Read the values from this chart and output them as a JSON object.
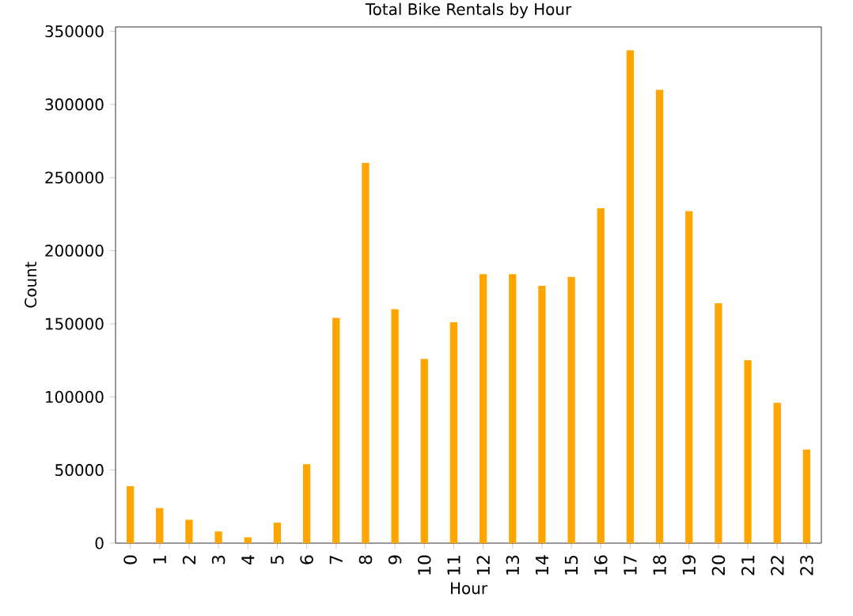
{
  "chart_data": {
    "type": "bar",
    "title": "Total Bike Rentals by Hour",
    "xlabel": "Hour",
    "ylabel": "Count",
    "categories": [
      "0",
      "1",
      "2",
      "3",
      "4",
      "5",
      "6",
      "7",
      "8",
      "9",
      "10",
      "11",
      "12",
      "13",
      "14",
      "15",
      "16",
      "17",
      "18",
      "19",
      "20",
      "21",
      "22",
      "23"
    ],
    "values": [
      39000,
      24000,
      16000,
      8000,
      4000,
      14000,
      54000,
      154000,
      260000,
      160000,
      126000,
      151000,
      184000,
      184000,
      176000,
      182000,
      229000,
      337000,
      310000,
      227000,
      164000,
      125000,
      96000,
      64000
    ],
    "color": "#ffa500",
    "ylim": [
      0,
      353000
    ],
    "yticks": [
      0,
      50000,
      100000,
      150000,
      200000,
      250000,
      300000,
      350000
    ],
    "grid": false
  }
}
